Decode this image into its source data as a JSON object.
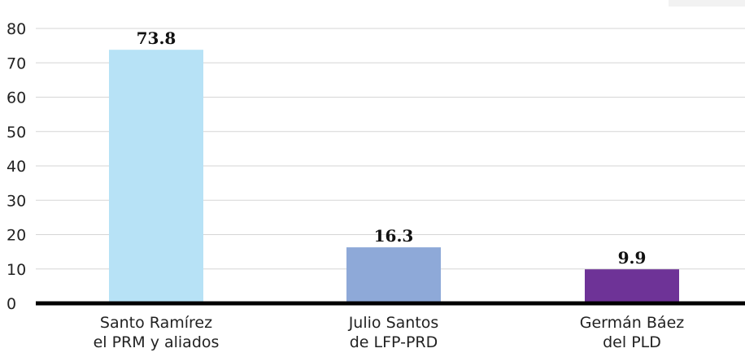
{
  "chart_data": {
    "type": "bar",
    "categories": [
      [
        "Santo Ramírez",
        "el PRM y aliados"
      ],
      [
        "Julio Santos",
        "de LFP-PRD"
      ],
      [
        "Germán Báez",
        "del PLD"
      ]
    ],
    "values": [
      73.8,
      16.3,
      9.9
    ],
    "value_labels": [
      "73.8",
      "16.3",
      "9.9"
    ],
    "bar_colors": [
      "#b7e2f6",
      "#8ea9d8",
      "#6e3397"
    ],
    "ylim": [
      0,
      80
    ],
    "yticks": [
      0,
      10,
      20,
      30,
      40,
      50,
      60,
      70,
      80
    ],
    "grid": true,
    "title": "",
    "xlabel": "",
    "ylabel": ""
  }
}
